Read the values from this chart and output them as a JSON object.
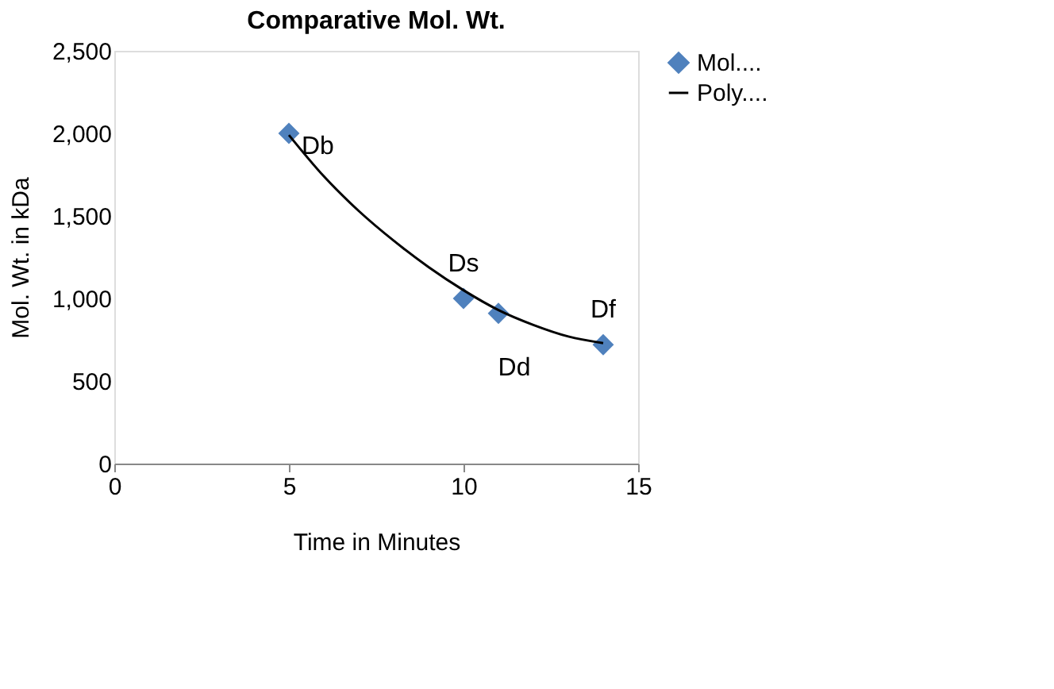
{
  "chart_data": {
    "type": "scatter",
    "title": "Comparative Mol. Wt.",
    "xlabel": "Time in Minutes",
    "ylabel": "Mol. Wt. in  kDa",
    "series": [
      {
        "name": "Mol....",
        "type": "scatter",
        "color": "#4f81bd",
        "marker": "diamond",
        "x": [
          5,
          10,
          11,
          14
        ],
        "values": [
          2000,
          1000,
          910,
          720
        ]
      },
      {
        "name": "Poly....",
        "type": "line",
        "color": "#000000",
        "marker": "none",
        "x": [
          5,
          6,
          7,
          8,
          9,
          10,
          11,
          12,
          13,
          14
        ],
        "values": [
          1990,
          1740,
          1530,
          1350,
          1190,
          1050,
          930,
          840,
          770,
          730
        ]
      }
    ],
    "annotations": [
      {
        "text": "Db",
        "x": 5,
        "y": 2000
      },
      {
        "text": "Ds",
        "x": 10,
        "y": 1000
      },
      {
        "text": "Dd",
        "x": 11,
        "y": 910
      },
      {
        "text": "Df",
        "x": 14,
        "y": 720
      }
    ],
    "xlim": [
      0,
      15
    ],
    "xticks": [
      0,
      5,
      10,
      15
    ],
    "ylim": [
      0,
      2500
    ],
    "yticks": [
      0,
      500,
      {
        "value": 1000,
        "label": "1,000"
      },
      {
        "value": 1500,
        "label": "1,500"
      },
      {
        "value": 2000,
        "label": "2,000"
      },
      {
        "value": 2500,
        "label": "2,500"
      }
    ],
    "grid": false,
    "legend": "right"
  }
}
